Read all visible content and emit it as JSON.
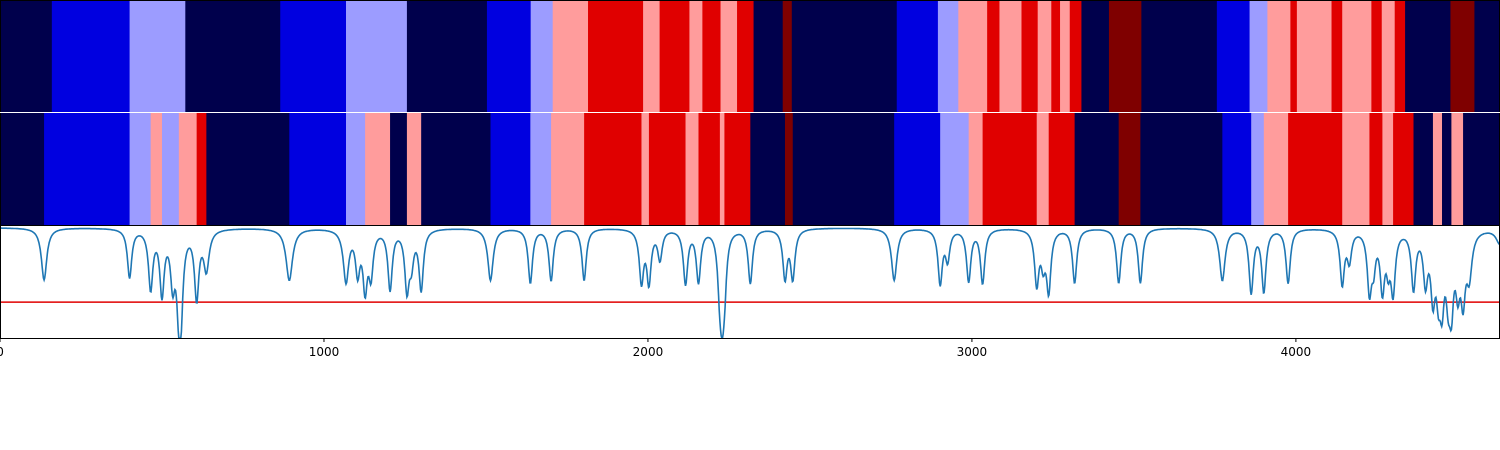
{
  "chart_data": {
    "type": "heatmap",
    "x_range": [
      0,
      4630
    ],
    "x_ticks": [
      0,
      1000,
      2000,
      3000,
      4000
    ],
    "x_tick_labels": [
      "0",
      "1000",
      "2000",
      "3000",
      "4000"
    ],
    "state_colors": {
      "0": "#00004c",
      "1": "#0000e0",
      "2": "#9c9cff",
      "3": "#ff9c9c",
      "4": "#e00000",
      "5": "#7f0000"
    },
    "tracks": [
      {
        "segments": [
          [
            0,
            160,
            0
          ],
          [
            160,
            400,
            1
          ],
          [
            400,
            572,
            2
          ],
          [
            572,
            865,
            0
          ],
          [
            865,
            1068,
            1
          ],
          [
            1068,
            1256,
            2
          ],
          [
            1256,
            1503,
            0
          ],
          [
            1503,
            1638,
            1
          ],
          [
            1638,
            1706,
            2
          ],
          [
            1706,
            1815,
            3
          ],
          [
            1815,
            1985,
            4
          ],
          [
            1985,
            2036,
            3
          ],
          [
            2036,
            2128,
            4
          ],
          [
            2128,
            2168,
            3
          ],
          [
            2168,
            2224,
            4
          ],
          [
            2224,
            2275,
            3
          ],
          [
            2275,
            2326,
            4
          ],
          [
            2326,
            2416,
            0
          ],
          [
            2416,
            2444,
            5
          ],
          [
            2444,
            2768,
            0
          ],
          [
            2768,
            2895,
            1
          ],
          [
            2895,
            2958,
            2
          ],
          [
            2958,
            3047,
            3
          ],
          [
            3047,
            3085,
            4
          ],
          [
            3085,
            3153,
            3
          ],
          [
            3153,
            3203,
            4
          ],
          [
            3203,
            3245,
            3
          ],
          [
            3245,
            3272,
            4
          ],
          [
            3272,
            3302,
            3
          ],
          [
            3302,
            3338,
            4
          ],
          [
            3338,
            3423,
            0
          ],
          [
            3423,
            3523,
            5
          ],
          [
            3523,
            3756,
            0
          ],
          [
            3756,
            3857,
            1
          ],
          [
            3857,
            3912,
            2
          ],
          [
            3912,
            3983,
            3
          ],
          [
            3983,
            4003,
            4
          ],
          [
            4003,
            4110,
            3
          ],
          [
            4110,
            4143,
            4
          ],
          [
            4143,
            4233,
            3
          ],
          [
            4233,
            4265,
            4
          ],
          [
            4265,
            4305,
            3
          ],
          [
            4305,
            4337,
            4
          ],
          [
            4337,
            4477,
            0
          ],
          [
            4477,
            4551,
            5
          ],
          [
            4551,
            4630,
            0
          ]
        ]
      },
      {
        "segments": [
          [
            0,
            136,
            0
          ],
          [
            136,
            400,
            1
          ],
          [
            400,
            465,
            2
          ],
          [
            465,
            500,
            3
          ],
          [
            500,
            552,
            2
          ],
          [
            552,
            607,
            3
          ],
          [
            607,
            637,
            4
          ],
          [
            637,
            893,
            0
          ],
          [
            893,
            1068,
            1
          ],
          [
            1068,
            1127,
            2
          ],
          [
            1127,
            1204,
            3
          ],
          [
            1204,
            1256,
            0
          ],
          [
            1256,
            1300,
            3
          ],
          [
            1300,
            1514,
            0
          ],
          [
            1514,
            1637,
            1
          ],
          [
            1637,
            1701,
            2
          ],
          [
            1701,
            1803,
            3
          ],
          [
            1803,
            1980,
            4
          ],
          [
            1980,
            2003,
            3
          ],
          [
            2003,
            2116,
            4
          ],
          [
            2116,
            2156,
            3
          ],
          [
            2156,
            2222,
            4
          ],
          [
            2222,
            2236,
            3
          ],
          [
            2236,
            2316,
            4
          ],
          [
            2316,
            2423,
            0
          ],
          [
            2423,
            2447,
            5
          ],
          [
            2447,
            2760,
            0
          ],
          [
            2760,
            2902,
            1
          ],
          [
            2902,
            2990,
            2
          ],
          [
            2990,
            3033,
            3
          ],
          [
            3033,
            3200,
            4
          ],
          [
            3200,
            3237,
            3
          ],
          [
            3237,
            3317,
            4
          ],
          [
            3317,
            3453,
            0
          ],
          [
            3453,
            3520,
            5
          ],
          [
            3520,
            3773,
            0
          ],
          [
            3773,
            3862,
            1
          ],
          [
            3862,
            3901,
            2
          ],
          [
            3901,
            3976,
            3
          ],
          [
            3976,
            4143,
            4
          ],
          [
            4143,
            4227,
            3
          ],
          [
            4227,
            4267,
            4
          ],
          [
            4267,
            4300,
            3
          ],
          [
            4300,
            4363,
            4
          ],
          [
            4363,
            4423,
            0
          ],
          [
            4423,
            4451,
            3
          ],
          [
            4451,
            4480,
            0
          ],
          [
            4480,
            4516,
            3
          ],
          [
            4516,
            4630,
            0
          ]
        ]
      }
    ],
    "line_series": {
      "color": "#1f77b4",
      "ylim": [
        0,
        1
      ],
      "threshold": 0.32,
      "threshold_color": "#e00000",
      "dips": [
        [
          136,
          0.52,
          10
        ],
        [
          400,
          0.55,
          8
        ],
        [
          465,
          0.46,
          8
        ],
        [
          500,
          0.42,
          8
        ],
        [
          533,
          0.55,
          8
        ],
        [
          552,
          0.47,
          8
        ],
        [
          558,
          0.35,
          8
        ],
        [
          607,
          0.38,
          8
        ],
        [
          637,
          0.63,
          10
        ],
        [
          893,
          0.52,
          12
        ],
        [
          1068,
          0.52,
          10
        ],
        [
          1104,
          0.62,
          8
        ],
        [
          1127,
          0.48,
          8
        ],
        [
          1145,
          0.6,
          8
        ],
        [
          1204,
          0.45,
          8
        ],
        [
          1256,
          0.47,
          8
        ],
        [
          1270,
          0.72,
          8
        ],
        [
          1300,
          0.45,
          8
        ],
        [
          1514,
          0.52,
          10
        ],
        [
          1637,
          0.5,
          8
        ],
        [
          1701,
          0.52,
          8
        ],
        [
          1803,
          0.52,
          8
        ],
        [
          1980,
          0.52,
          8
        ],
        [
          2003,
          0.52,
          8
        ],
        [
          2037,
          0.72,
          8
        ],
        [
          2116,
          0.5,
          8
        ],
        [
          2156,
          0.52,
          8
        ],
        [
          2222,
          0.47,
          8
        ],
        [
          2229,
          0.55,
          6
        ],
        [
          2236,
          0.5,
          8
        ],
        [
          2316,
          0.5,
          8
        ],
        [
          2423,
          0.55,
          8
        ],
        [
          2447,
          0.55,
          8
        ],
        [
          2760,
          0.52,
          10
        ],
        [
          2902,
          0.5,
          8
        ],
        [
          2925,
          0.72,
          8
        ],
        [
          2990,
          0.52,
          8
        ],
        [
          3033,
          0.5,
          8
        ],
        [
          3200,
          0.5,
          8
        ],
        [
          3220,
          0.72,
          8
        ],
        [
          3237,
          0.45,
          8
        ],
        [
          3317,
          0.5,
          8
        ],
        [
          3453,
          0.5,
          8
        ],
        [
          3520,
          0.5,
          8
        ],
        [
          3773,
          0.52,
          10
        ],
        [
          3862,
          0.42,
          8
        ],
        [
          3901,
          0.43,
          8
        ],
        [
          3976,
          0.5,
          8
        ],
        [
          4143,
          0.5,
          8
        ],
        [
          4165,
          0.72,
          8
        ],
        [
          4227,
          0.45,
          8
        ],
        [
          4240,
          0.72,
          7
        ],
        [
          4267,
          0.47,
          8
        ],
        [
          4285,
          0.72,
          7
        ],
        [
          4300,
          0.45,
          8
        ],
        [
          4363,
          0.47,
          8
        ],
        [
          4400,
          0.55,
          8
        ],
        [
          4423,
          0.45,
          8
        ],
        [
          4440,
          0.55,
          8
        ],
        [
          4451,
          0.45,
          8
        ],
        [
          4470,
          0.55,
          8
        ],
        [
          4480,
          0.42,
          8
        ],
        [
          4500,
          0.55,
          8
        ],
        [
          4516,
          0.44,
          8
        ],
        [
          4535,
          0.6,
          10
        ],
        [
          4630,
          0.85,
          14
        ]
      ]
    }
  }
}
